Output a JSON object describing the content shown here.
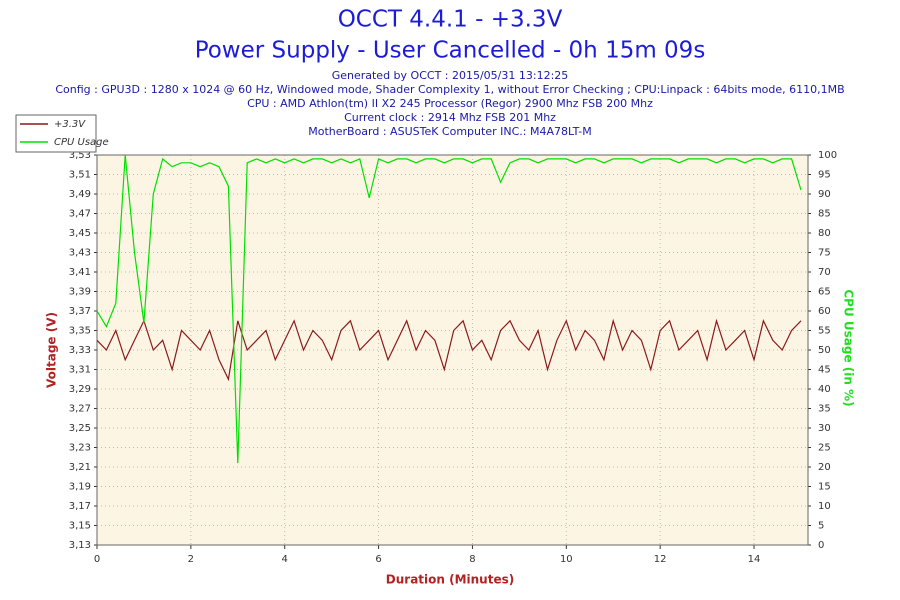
{
  "chart_data": {
    "type": "line",
    "title": "OCCT 4.4.1 - +3.3V",
    "subtitle": "Power Supply - User Cancelled - 0h 15m 09s",
    "info_lines": [
      "Generated by OCCT : 2015/05/31 13:12:25",
      "Config : GPU3D : 1280 x 1024 @ 60 Hz, Windowed mode, Shader Complexity 1, without Error Checking ; CPU:Linpack : 64bits mode, 6110,1MB",
      "CPU : AMD Athlon(tm) II X2 245 Processor (Regor) 2900 Mhz FSB 200 Mhz",
      "Current clock : 2914 Mhz FSB 201 Mhz",
      "MotherBoard : ASUSTeK Computer INC.: M4A78LT-M"
    ],
    "xlabel": "Duration (Minutes)",
    "ylabel": "Voltage (V)",
    "y2label": "CPU Usage (in %)",
    "legend": "top-left",
    "grid": true,
    "xlim": [
      0,
      15.15
    ],
    "xticks": [
      0,
      2,
      4,
      6,
      8,
      10,
      12,
      14
    ],
    "ylim": [
      3.13,
      3.53
    ],
    "yticks": [
      {
        "value": 3.13,
        "label": "3,13"
      },
      {
        "value": 3.15,
        "label": "3,15"
      },
      {
        "value": 3.17,
        "label": "3,17"
      },
      {
        "value": 3.19,
        "label": "3,19"
      },
      {
        "value": 3.21,
        "label": "3,21"
      },
      {
        "value": 3.23,
        "label": "3,23"
      },
      {
        "value": 3.25,
        "label": "3,25"
      },
      {
        "value": 3.27,
        "label": "3,27"
      },
      {
        "value": 3.29,
        "label": "3,29"
      },
      {
        "value": 3.31,
        "label": "3,31"
      },
      {
        "value": 3.33,
        "label": "3,33"
      },
      {
        "value": 3.35,
        "label": "3,35"
      },
      {
        "value": 3.37,
        "label": "3,37"
      },
      {
        "value": 3.39,
        "label": "3,39"
      },
      {
        "value": 3.41,
        "label": "3,41"
      },
      {
        "value": 3.43,
        "label": "3,43"
      },
      {
        "value": 3.45,
        "label": "3,45"
      },
      {
        "value": 3.47,
        "label": "3,47"
      },
      {
        "value": 3.49,
        "label": "3,49"
      },
      {
        "value": 3.51,
        "label": "3,51"
      },
      {
        "value": 3.53,
        "label": "3,53"
      }
    ],
    "y2lim": [
      0,
      100
    ],
    "y2ticks": [
      0,
      5,
      10,
      15,
      20,
      25,
      30,
      35,
      40,
      45,
      50,
      55,
      60,
      65,
      70,
      75,
      80,
      85,
      90,
      95,
      100
    ],
    "x": [
      0,
      0.2,
      0.4,
      0.6,
      0.8,
      1,
      1.2,
      1.4,
      1.6,
      1.8,
      2,
      2.2,
      2.4,
      2.6,
      2.8,
      3,
      3.2,
      3.4,
      3.6,
      3.8,
      4,
      4.2,
      4.4,
      4.6,
      4.8,
      5,
      5.2,
      5.4,
      5.6,
      5.8,
      6,
      6.2,
      6.4,
      6.6,
      6.8,
      7,
      7.2,
      7.4,
      7.6,
      7.8,
      8,
      8.2,
      8.4,
      8.6,
      8.8,
      9,
      9.2,
      9.4,
      9.6,
      9.8,
      10,
      10.2,
      10.4,
      10.6,
      10.8,
      11,
      11.2,
      11.4,
      11.6,
      11.8,
      12,
      12.2,
      12.4,
      12.6,
      12.8,
      13,
      13.2,
      13.4,
      13.6,
      13.8,
      14,
      14.2,
      14.4,
      14.6,
      14.8,
      15
    ],
    "series": [
      {
        "name": "+3.3V",
        "color": "#8b1a1a",
        "values": [
          3.34,
          3.33,
          3.35,
          3.32,
          3.34,
          3.36,
          3.33,
          3.34,
          3.31,
          3.35,
          3.34,
          3.33,
          3.35,
          3.32,
          3.3,
          3.36,
          3.33,
          3.34,
          3.35,
          3.32,
          3.34,
          3.36,
          3.33,
          3.35,
          3.34,
          3.32,
          3.35,
          3.36,
          3.33,
          3.34,
          3.35,
          3.32,
          3.34,
          3.36,
          3.33,
          3.35,
          3.34,
          3.31,
          3.35,
          3.36,
          3.33,
          3.34,
          3.32,
          3.35,
          3.36,
          3.34,
          3.33,
          3.35,
          3.31,
          3.34,
          3.36,
          3.33,
          3.35,
          3.34,
          3.32,
          3.36,
          3.33,
          3.35,
          3.34,
          3.31,
          3.35,
          3.36,
          3.33,
          3.34,
          3.35,
          3.32,
          3.36,
          3.33,
          3.34,
          3.35,
          3.32,
          3.36,
          3.34,
          3.33,
          3.35,
          3.36
        ]
      },
      {
        "name": "CPU Usage",
        "color": "#00e000",
        "axis": "y2",
        "values": [
          60,
          56,
          62,
          100,
          75,
          57,
          90,
          99,
          97,
          98,
          98,
          97,
          98,
          97,
          92,
          21,
          98,
          99,
          98,
          99,
          98,
          99,
          98,
          99,
          99,
          98,
          99,
          98,
          99,
          89,
          99,
          98,
          99,
          99,
          98,
          99,
          99,
          98,
          99,
          99,
          98,
          99,
          99,
          93,
          98,
          99,
          99,
          98,
          99,
          99,
          99,
          98,
          99,
          99,
          98,
          99,
          99,
          99,
          98,
          99,
          99,
          99,
          98,
          99,
          99,
          99,
          98,
          99,
          99,
          98,
          99,
          99,
          98,
          99,
          99,
          91
        ]
      }
    ]
  }
}
